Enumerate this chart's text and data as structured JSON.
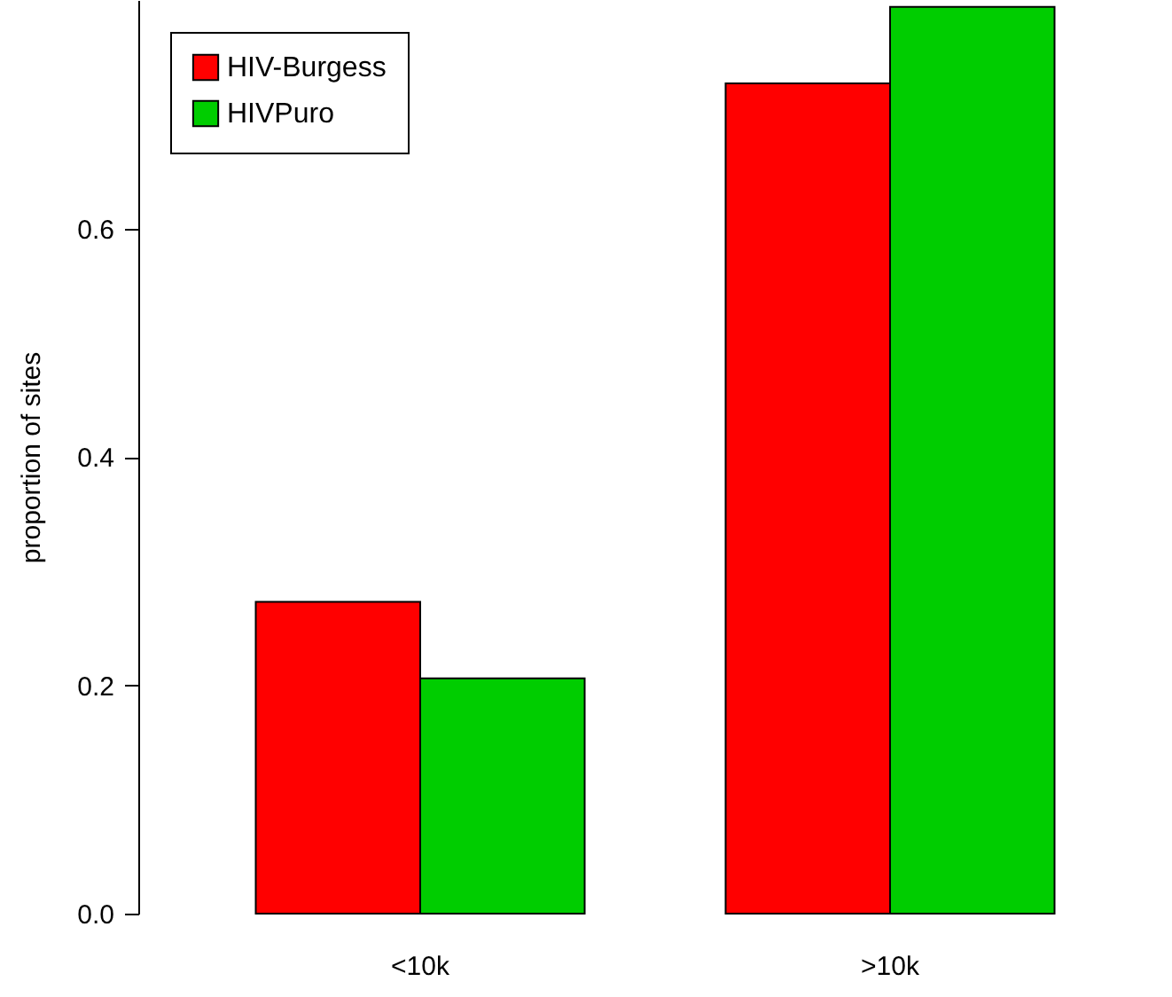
{
  "chart_data": {
    "type": "bar",
    "ylabel": "proportion of sites",
    "categories": [
      "<10k",
      ">10k"
    ],
    "series": [
      {
        "name": "HIV-Burgess",
        "color": "#ff0000",
        "values": [
          0.273,
          0.727
        ]
      },
      {
        "name": "HIVPuro",
        "color": "#00cd00",
        "values": [
          0.206,
          0.794
        ]
      }
    ],
    "ylim": [
      0,
      0.8
    ],
    "yticks": [
      {
        "value": 0,
        "label": "0.0"
      },
      {
        "value": 0.2,
        "label": "0.2"
      },
      {
        "value": 0.4,
        "label": "0.4"
      },
      {
        "value": 0.6,
        "label": "0.6"
      }
    ],
    "grid": false,
    "legend": "top left"
  }
}
